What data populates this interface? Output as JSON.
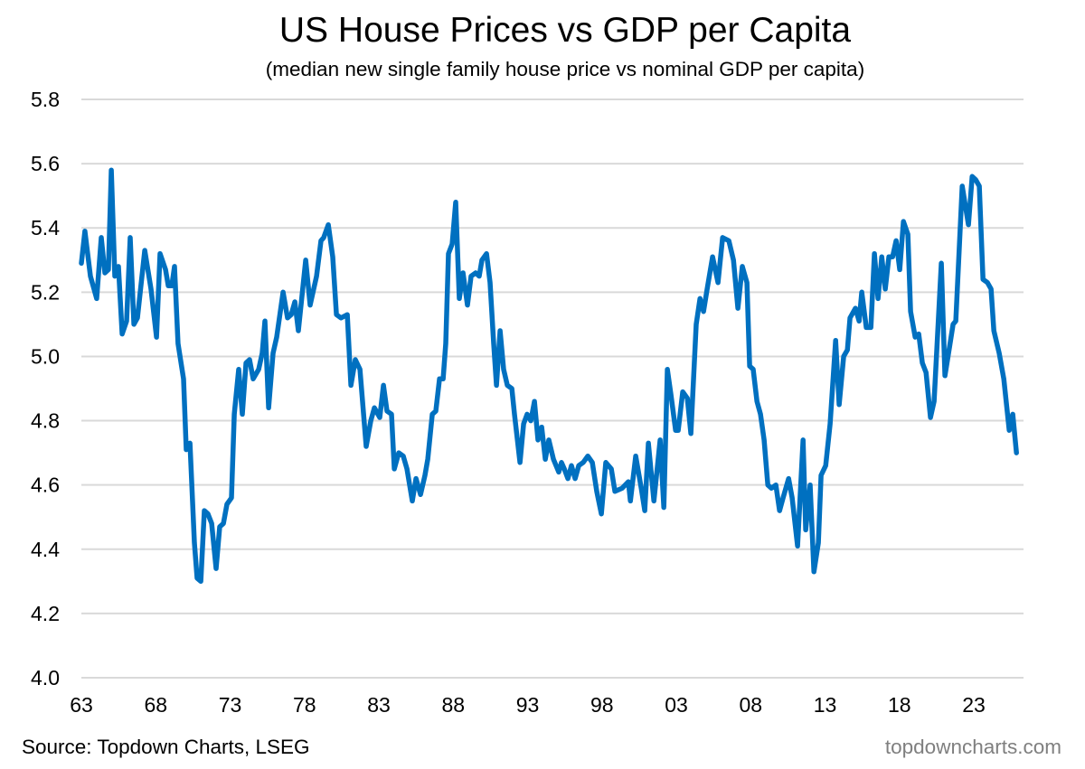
{
  "chart_data": {
    "type": "line",
    "title": "US House Prices vs GDP per Capita",
    "subtitle": "(median new single family house price vs nominal GDP per capita)",
    "xlabel": "",
    "ylabel": "",
    "ylim": [
      4.0,
      5.8
    ],
    "yticks": [
      "4.0",
      "4.2",
      "4.4",
      "4.6",
      "4.8",
      "5.0",
      "5.2",
      "5.4",
      "5.6",
      "5.8"
    ],
    "xlim": [
      1963,
      2026.3
    ],
    "xticks": [
      {
        "year": 1963,
        "label": "63"
      },
      {
        "year": 1968,
        "label": "68"
      },
      {
        "year": 1973,
        "label": "73"
      },
      {
        "year": 1978,
        "label": "78"
      },
      {
        "year": 1983,
        "label": "83"
      },
      {
        "year": 1988,
        "label": "88"
      },
      {
        "year": 1993,
        "label": "93"
      },
      {
        "year": 1998,
        "label": "98"
      },
      {
        "year": 2003,
        "label": "03"
      },
      {
        "year": 2008,
        "label": "08"
      },
      {
        "year": 2013,
        "label": "13"
      },
      {
        "year": 2018,
        "label": "18"
      },
      {
        "year": 2023,
        "label": "23"
      }
    ],
    "grid": true,
    "series": [
      {
        "name": "House price / GDP per capita",
        "color": "#0070C0",
        "x": [
          1963.0,
          1963.24,
          1963.61,
          1964.03,
          1964.34,
          1964.58,
          1964.82,
          1965.01,
          1965.25,
          1965.49,
          1965.74,
          1966.04,
          1966.28,
          1966.53,
          1966.77,
          1967.26,
          1967.68,
          1968.05,
          1968.29,
          1968.66,
          1968.84,
          1969.08,
          1969.26,
          1969.5,
          1969.87,
          1970.05,
          1970.3,
          1970.6,
          1970.78,
          1971.03,
          1971.27,
          1971.51,
          1971.76,
          1972.06,
          1972.3,
          1972.55,
          1972.79,
          1973.09,
          1973.28,
          1973.58,
          1973.82,
          1974.07,
          1974.31,
          1974.55,
          1974.92,
          1975.16,
          1975.34,
          1975.59,
          1975.89,
          1976.13,
          1976.56,
          1976.86,
          1977.11,
          1977.35,
          1977.59,
          1978.08,
          1978.38,
          1978.81,
          1979.11,
          1979.29,
          1979.6,
          1979.9,
          1980.15,
          1980.45,
          1980.88,
          1981.12,
          1981.42,
          1981.73,
          1982.15,
          1982.46,
          1982.7,
          1983.06,
          1983.31,
          1983.55,
          1983.85,
          1984.04,
          1984.34,
          1984.64,
          1984.89,
          1985.25,
          1985.5,
          1985.8,
          1986.1,
          1986.29,
          1986.59,
          1986.83,
          1987.08,
          1987.32,
          1987.5,
          1987.68,
          1987.93,
          1988.17,
          1988.41,
          1988.66,
          1988.96,
          1989.2,
          1989.51,
          1989.75,
          1989.93,
          1990.24,
          1990.48,
          1990.72,
          1990.91,
          1991.15,
          1991.39,
          1991.64,
          1991.94,
          1992.12,
          1992.49,
          1992.73,
          1992.97,
          1993.22,
          1993.46,
          1993.7,
          1993.95,
          1994.19,
          1994.43,
          1994.74,
          1995.1,
          1995.28,
          1995.47,
          1995.71,
          1995.95,
          1996.2,
          1996.44,
          1996.74,
          1997.05,
          1997.35,
          1997.65,
          1997.96,
          1998.26,
          1998.63,
          1998.87,
          1999.36,
          1999.78,
          1999.91,
          2000.27,
          2000.64,
          2000.88,
          2001.12,
          2001.49,
          2001.91,
          2002.16,
          2002.4,
          2002.64,
          2002.95,
          2003.13,
          2003.43,
          2003.74,
          2003.98,
          2004.34,
          2004.59,
          2004.83,
          2005.07,
          2005.44,
          2005.8,
          2006.11,
          2006.53,
          2006.84,
          2007.14,
          2007.44,
          2007.75,
          2007.93,
          2008.17,
          2008.42,
          2008.66,
          2008.9,
          2009.15,
          2009.39,
          2009.69,
          2009.94,
          2010.18,
          2010.55,
          2010.79,
          2011.15,
          2011.52,
          2011.7,
          2012.0,
          2012.25,
          2012.55,
          2012.73,
          2013.04,
          2013.34,
          2013.71,
          2013.95,
          2014.25,
          2014.5,
          2014.68,
          2015.04,
          2015.29,
          2015.47,
          2015.77,
          2016.08,
          2016.32,
          2016.56,
          2016.81,
          2017.05,
          2017.29,
          2017.54,
          2017.78,
          2018.02,
          2018.27,
          2018.57,
          2018.75,
          2019.06,
          2019.3,
          2019.54,
          2019.79,
          2020.09,
          2020.33,
          2020.82,
          2021.06,
          2021.37,
          2021.61,
          2021.79,
          2022.22,
          2022.64,
          2022.89,
          2023.13,
          2023.37,
          2023.62,
          2023.92,
          2024.16,
          2024.35,
          2024.71,
          2025.02,
          2025.38,
          2025.62,
          2025.87
        ],
        "y": [
          5.29,
          5.39,
          5.25,
          5.18,
          5.37,
          5.26,
          5.27,
          5.58,
          5.25,
          5.28,
          5.07,
          5.11,
          5.37,
          5.1,
          5.12,
          5.33,
          5.21,
          5.06,
          5.32,
          5.27,
          5.22,
          5.22,
          5.28,
          5.04,
          4.93,
          4.71,
          4.73,
          4.42,
          4.31,
          4.3,
          4.52,
          4.51,
          4.48,
          4.34,
          4.47,
          4.48,
          4.54,
          4.56,
          4.82,
          4.96,
          4.82,
          4.98,
          4.99,
          4.93,
          4.96,
          5.01,
          5.11,
          4.84,
          5.01,
          5.06,
          5.2,
          5.12,
          5.13,
          5.17,
          5.08,
          5.3,
          5.16,
          5.25,
          5.36,
          5.37,
          5.41,
          5.31,
          5.13,
          5.12,
          5.13,
          4.91,
          4.99,
          4.96,
          4.72,
          4.8,
          4.84,
          4.81,
          4.91,
          4.83,
          4.82,
          4.65,
          4.7,
          4.69,
          4.65,
          4.55,
          4.62,
          4.57,
          4.63,
          4.68,
          4.82,
          4.83,
          4.93,
          4.93,
          5.04,
          5.32,
          5.35,
          5.48,
          5.18,
          5.26,
          5.16,
          5.25,
          5.26,
          5.25,
          5.3,
          5.32,
          5.23,
          5.04,
          4.91,
          5.08,
          4.96,
          4.91,
          4.9,
          4.82,
          4.67,
          4.79,
          4.82,
          4.8,
          4.86,
          4.74,
          4.78,
          4.68,
          4.74,
          4.68,
          4.64,
          4.67,
          4.65,
          4.62,
          4.66,
          4.62,
          4.66,
          4.67,
          4.69,
          4.67,
          4.58,
          4.51,
          4.67,
          4.65,
          4.58,
          4.59,
          4.61,
          4.55,
          4.69,
          4.59,
          4.52,
          4.73,
          4.55,
          4.74,
          4.53,
          4.96,
          4.88,
          4.77,
          4.77,
          4.89,
          4.87,
          4.76,
          5.1,
          5.18,
          5.14,
          5.21,
          5.31,
          5.23,
          5.37,
          5.36,
          5.3,
          5.15,
          5.28,
          5.23,
          4.97,
          4.96,
          4.86,
          4.82,
          4.74,
          4.6,
          4.59,
          4.6,
          4.52,
          4.56,
          4.62,
          4.56,
          4.41,
          4.74,
          4.46,
          4.6,
          4.33,
          4.42,
          4.63,
          4.66,
          4.79,
          5.05,
          4.85,
          5.0,
          5.02,
          5.12,
          5.15,
          5.11,
          5.2,
          5.09,
          5.09,
          5.32,
          5.18,
          5.31,
          5.21,
          5.31,
          5.31,
          5.36,
          5.27,
          5.42,
          5.38,
          5.14,
          5.06,
          5.07,
          4.98,
          4.95,
          4.81,
          4.86,
          5.29,
          4.94,
          5.03,
          5.1,
          5.11,
          5.53,
          5.41,
          5.56,
          5.55,
          5.53,
          5.24,
          5.23,
          5.21,
          5.08,
          5.01,
          4.93,
          4.77,
          4.82,
          4.7
        ]
      }
    ]
  },
  "footer": {
    "source": "Source: Topdown Charts, LSEG",
    "brand": "topdowncharts.com"
  }
}
